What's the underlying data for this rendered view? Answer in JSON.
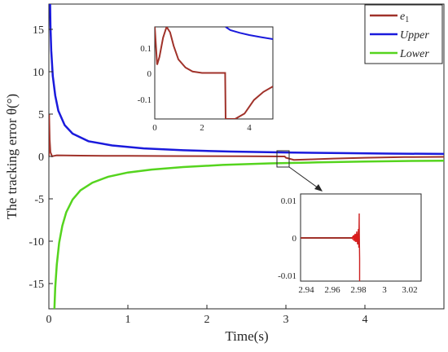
{
  "chart_data": {
    "type": "line",
    "xlabel": "Time(s)",
    "ylabel": "The tracking error θ(°)",
    "xlim": [
      0,
      5
    ],
    "ylim": [
      -18,
      18
    ],
    "xticks": [
      "0",
      "1",
      "2",
      "3",
      "4"
    ],
    "yticks": [
      "15",
      "10",
      "5",
      "0",
      "-5",
      "-10",
      "-15"
    ],
    "legend_position": "top-right",
    "grid": false,
    "series": [
      {
        "name": "e1",
        "color": "#a0322a",
        "x": [
          0,
          0.003,
          0.01,
          0.02,
          0.04,
          0.07,
          0.1,
          0.2,
          0.4,
          0.7,
          1.0,
          1.5,
          2.0,
          2.5,
          2.95,
          2.985,
          3.0,
          3.1,
          3.3,
          3.6,
          4.0,
          4.5,
          5.0
        ],
        "y": [
          0,
          5.0,
          2.0,
          0.5,
          0.02,
          0.08,
          0.13,
          0.12,
          0.1,
          0.08,
          0.07,
          0.05,
          0.04,
          0.03,
          0.0,
          0.0,
          -0.15,
          -0.4,
          -0.35,
          -0.25,
          -0.15,
          -0.08,
          -0.05
        ]
      },
      {
        "name": "Upper",
        "color": "#1a1adc",
        "x": [
          0.015,
          0.02,
          0.03,
          0.05,
          0.08,
          0.12,
          0.2,
          0.3,
          0.5,
          0.8,
          1.2,
          1.7,
          2.3,
          3.0,
          3.7,
          4.3,
          5.0
        ],
        "y": [
          18,
          15.5,
          12.5,
          9.5,
          7.2,
          5.4,
          3.7,
          2.7,
          1.8,
          1.3,
          0.95,
          0.73,
          0.58,
          0.47,
          0.39,
          0.34,
          0.3
        ]
      },
      {
        "name": "Lower",
        "color": "#55d41e",
        "x": [
          0.07,
          0.08,
          0.1,
          0.13,
          0.17,
          0.22,
          0.3,
          0.4,
          0.55,
          0.75,
          1.0,
          1.3,
          1.7,
          2.2,
          2.8,
          3.4,
          4.0,
          4.6,
          5.0
        ],
        "y": [
          -18,
          -15.5,
          -12.8,
          -10.2,
          -8.2,
          -6.6,
          -5.1,
          -4.0,
          -3.1,
          -2.4,
          -1.9,
          -1.55,
          -1.25,
          -1.0,
          -0.82,
          -0.7,
          -0.6,
          -0.53,
          -0.5
        ]
      }
    ],
    "annotations": [
      {
        "type": "inset",
        "xticks": [
          "0",
          "2",
          "4"
        ],
        "yticks": [
          "0.1",
          "0",
          "-0.1"
        ],
        "xlim": [
          0,
          5
        ],
        "ylim": [
          -0.17,
          0.17
        ],
        "e1": {
          "x": [
            0,
            0.1,
            0.2,
            0.35,
            0.5,
            0.65,
            0.8,
            1.0,
            1.3,
            1.6,
            2.0,
            2.5,
            2.98,
            3.0,
            3.05,
            3.4,
            3.8,
            4.2,
            4.6,
            5.0
          ],
          "y": [
            0.17,
            0.03,
            0.06,
            0.13,
            0.17,
            0.15,
            0.1,
            0.05,
            0.02,
            0.005,
            0.0,
            0.0,
            0.0,
            -0.17,
            -0.17,
            -0.17,
            -0.15,
            -0.1,
            -0.07,
            -0.05
          ]
        },
        "upper": {
          "x": [
            3.0,
            3.2,
            3.6,
            4.0,
            4.5,
            5.0
          ],
          "y": [
            0.17,
            0.158,
            0.148,
            0.14,
            0.132,
            0.125
          ]
        }
      },
      {
        "type": "inset",
        "xticks": [
          "2.94",
          "2.96",
          "2.98",
          "3",
          "3.02"
        ],
        "yticks": [
          "0.01",
          "0",
          "-0.01"
        ],
        "xlim": [
          2.935,
          3.025
        ],
        "ylim": [
          -0.0115,
          0.0115
        ]
      }
    ]
  }
}
